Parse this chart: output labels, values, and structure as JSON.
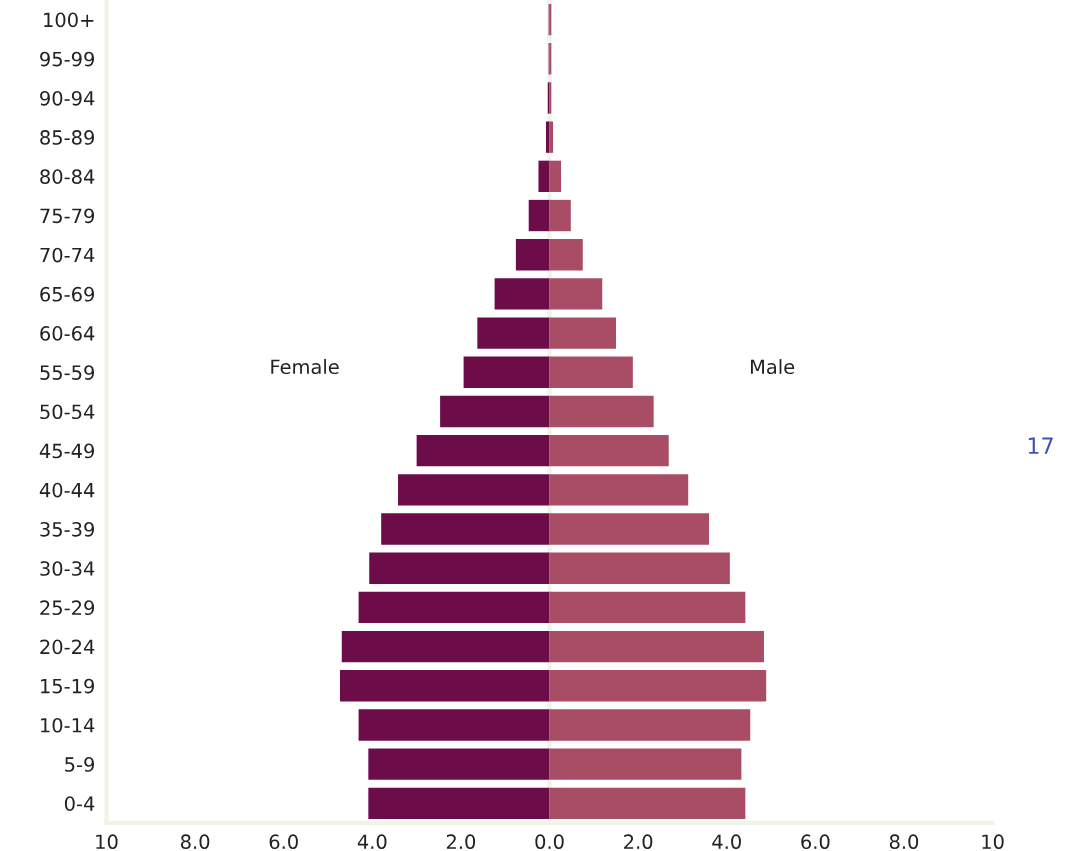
{
  "chart_data": {
    "type": "bar",
    "orientation": "horizontal",
    "categories": [
      "100+",
      "95-99",
      "90-94",
      "85-89",
      "80-84",
      "75-79",
      "70-74",
      "65-69",
      "60-64",
      "55-59",
      "50-54",
      "45-49",
      "40-44",
      "35-39",
      "30-34",
      "25-29",
      "20-24",
      "15-19",
      "10-14",
      "5-9",
      "0-4"
    ],
    "series": [
      {
        "color": "#6c0d4a",
        "values": [
          -0.02,
          -0.02,
          -0.04,
          -0.08,
          -0.25,
          -0.47,
          -0.76,
          -1.24,
          -1.63,
          -1.94,
          -2.47,
          -3.0,
          -3.42,
          -3.8,
          -4.07,
          -4.31,
          -4.69,
          -4.73,
          -4.31,
          -4.09,
          -4.09
        ]
      },
      {
        "color": "#a94d66",
        "values": [
          0.04,
          0.04,
          0.04,
          0.08,
          0.26,
          0.48,
          0.75,
          1.19,
          1.5,
          1.88,
          2.35,
          2.69,
          3.13,
          3.6,
          4.07,
          4.42,
          4.84,
          4.89,
          4.53,
          4.33,
          4.42
        ]
      }
    ],
    "xlim": [
      -10,
      10
    ],
    "xticks": [
      {
        "value": -10,
        "label": "10"
      },
      {
        "value": -8,
        "label": "8.0"
      },
      {
        "value": -6,
        "label": "6.0"
      },
      {
        "value": -4,
        "label": "4.0"
      },
      {
        "value": -2,
        "label": "2.0"
      },
      {
        "value": 0,
        "label": "0.0"
      },
      {
        "value": 2,
        "label": "2.0"
      },
      {
        "value": 4,
        "label": "4.0"
      },
      {
        "value": 6,
        "label": "6.0"
      },
      {
        "value": 8,
        "label": "8.0"
      },
      {
        "value": 10,
        "label": "10"
      }
    ],
    "ref_lines": [
      {
        "axis": "x",
        "value": 0,
        "color": "#eef5e6"
      }
    ],
    "annotations": [
      "Female",
      "Male",
      "17"
    ],
    "stacked": true,
    "grid": false
  }
}
